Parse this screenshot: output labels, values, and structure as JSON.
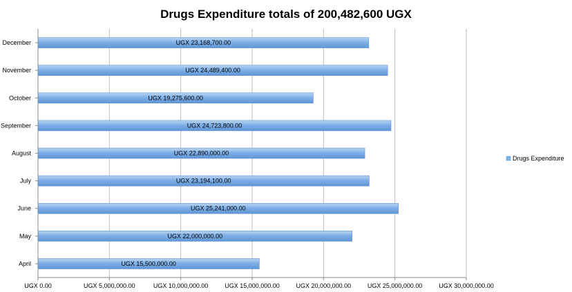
{
  "chart_data": {
    "type": "bar",
    "orientation": "horizontal",
    "title": "Drugs Expenditure totals of 200,482,600 UGX",
    "categories": [
      "April",
      "May",
      "June",
      "July",
      "August",
      "September",
      "October",
      "November",
      "December"
    ],
    "series": [
      {
        "name": "Drugs Expenditure",
        "color": "#7fb0e6",
        "values": [
          15500000,
          22000000,
          25241000,
          23194100,
          22890000,
          24723800,
          19275600,
          24489400,
          23168700
        ],
        "data_labels": [
          "UGX 15,500,000.00",
          "UGX 22,000,000.00",
          "UGX 25,241,000.00",
          "UGX 23,194,100.00",
          "UGX 22,890,000.00",
          "UGX 24,723,800.00",
          "UGX 19,275,600.00",
          "UGX 24,489,400.00",
          "UGX 23,168,700.00"
        ]
      }
    ],
    "xlim": [
      0,
      30000000
    ],
    "x_ticks": [
      0,
      5000000,
      10000000,
      15000000,
      20000000,
      25000000,
      30000000
    ],
    "x_tick_labels": [
      "UGX 0.00",
      "UGX 5,000,000.00",
      "UGX 10,000,000.00",
      "UGX 15,000,000.00",
      "UGX 20,000,000.00",
      "UGX 25,000,000.00",
      "UGX 30,000,000.00"
    ],
    "grid": true,
    "legend_position": "right"
  }
}
